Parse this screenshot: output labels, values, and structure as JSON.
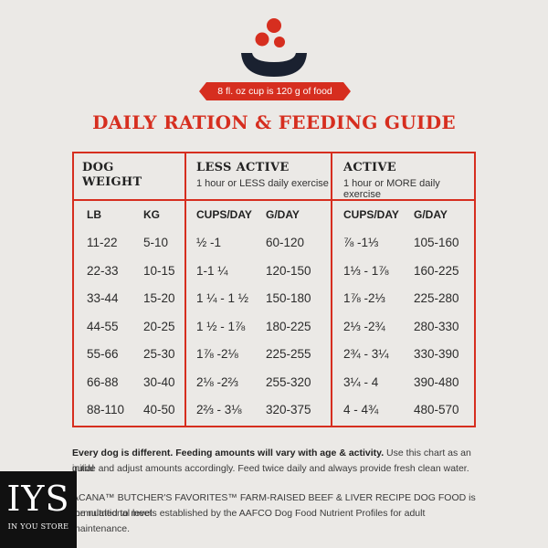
{
  "logo": {
    "icon": "bowl-icon",
    "ribbon_text": "8 fl. oz cup is 120 g of food"
  },
  "title": "DAILY RATION & FEEDING GUIDE",
  "groups": {
    "dog_weight": {
      "title_line1": "DOG",
      "title_line2": "WEIGHT"
    },
    "less_active": {
      "title": "LESS ACTIVE",
      "subtitle": "1 hour or LESS daily exercise"
    },
    "active": {
      "title": "ACTIVE",
      "subtitle": "1 hour or MORE daily exercise"
    }
  },
  "columns": [
    "LB",
    "KG",
    "CUPS/DAY",
    "G/DAY",
    "CUPS/DAY",
    "G/DAY"
  ],
  "rows": [
    [
      "11-22",
      "5-10",
      "½ -1",
      "60-120",
      "⅞ -1⅓",
      "105-160"
    ],
    [
      "22-33",
      "10-15",
      "1-1 ¼",
      "120-150",
      "1⅓ - 1⅞",
      "160-225"
    ],
    [
      "33-44",
      "15-20",
      "1 ¼ - 1 ½",
      "150-180",
      "1⅞ -2⅓",
      "225-280"
    ],
    [
      "44-55",
      "20-25",
      "1 ½ - 1⅞",
      "180-225",
      "2⅓ -2¾",
      "280-330"
    ],
    [
      "55-66",
      "25-30",
      "1⅞ -2⅛",
      "225-255",
      "2¾ - 3¼",
      "330-390"
    ],
    [
      "66-88",
      "30-40",
      "2⅛ -2⅔",
      "255-320",
      "3¼ - 4",
      "390-480"
    ],
    [
      "88-110",
      "40-50",
      "2⅔ - 3⅛",
      "320-375",
      "4 - 4¾",
      "480-570"
    ]
  ],
  "notes": {
    "bold": "Every dog is different. Feeding amounts will vary with age & activity.",
    "line1_rest": " Use this chart as an initial",
    "line2": "guide and adjust amounts accordingly. Feed twice daily and always provide fresh clean water.",
    "line3": "ACANA™ BUTCHER'S FAVORITES™ FARM-RAISED BEEF & LIVER RECIPE DOG FOOD is formulated to meet",
    "line4": "the nutritional levels established by the AAFCO Dog Food Nutrient Profiles for adult maintenance."
  },
  "badge": {
    "main": "IYS",
    "sub": "IN YOU STORE"
  },
  "colors": {
    "accent": "#d62e1f",
    "background": "#ebe9e6",
    "bowl": "#1a2130"
  }
}
